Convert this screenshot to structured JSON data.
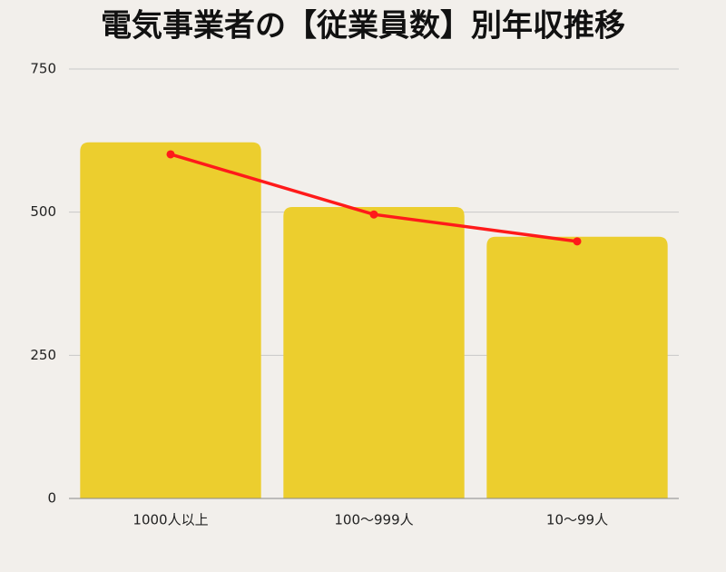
{
  "chart_data": {
    "type": "bar",
    "title": "電気事業者の【従業員数】別年収推移",
    "categories": [
      "1000人以上",
      "100〜999人",
      "10〜99人"
    ],
    "series": [
      {
        "type": "bar",
        "color": "#ecce2e",
        "values": [
          622,
          509,
          457
        ]
      },
      {
        "type": "line",
        "color": "#ff1a1a",
        "values": [
          601,
          496,
          449
        ]
      }
    ],
    "ylim": [
      0,
      750
    ],
    "yticks": [
      0,
      250,
      500,
      750
    ],
    "grid": true
  }
}
